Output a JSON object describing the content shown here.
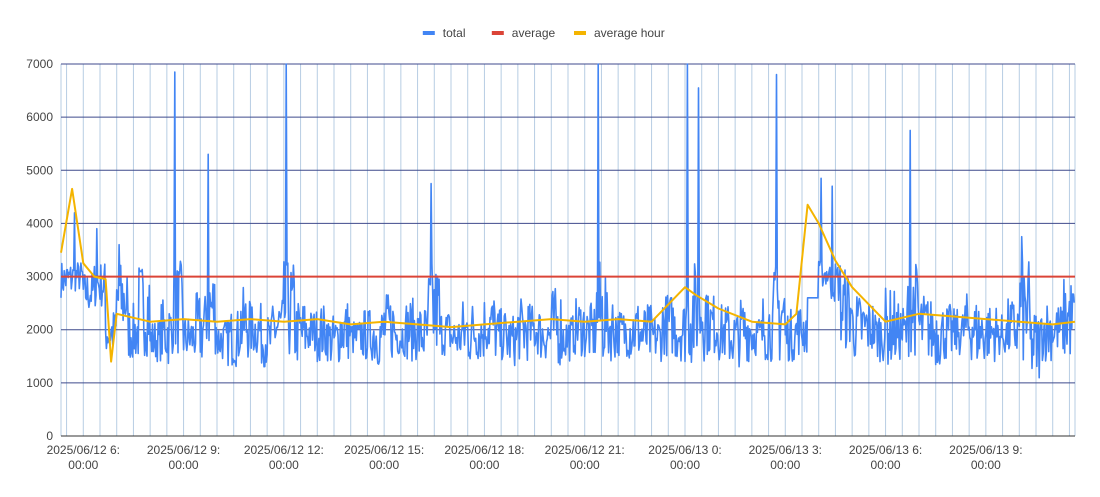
{
  "chart_data": {
    "type": "line",
    "legend_position": "top",
    "grid": true,
    "ylim": [
      0,
      7000
    ],
    "y_ticks": [
      0,
      1000,
      2000,
      3000,
      4000,
      5000,
      6000,
      7000
    ],
    "x_range": [
      "2025-06-12T05:20",
      "2025-06-13T11:40"
    ],
    "x_tick_labels": [
      {
        "line1": "2025/06/12 6:",
        "line2": "00:00",
        "t": "2025-06-12T06:00"
      },
      {
        "line1": "2025/06/12 9:",
        "line2": "00:00",
        "t": "2025-06-12T09:00"
      },
      {
        "line1": "2025/06/12 12:",
        "line2": "00:00",
        "t": "2025-06-12T12:00"
      },
      {
        "line1": "2025/06/12 15:",
        "line2": "00:00",
        "t": "2025-06-12T15:00"
      },
      {
        "line1": "2025/06/12 18:",
        "line2": "00:00",
        "t": "2025-06-12T18:00"
      },
      {
        "line1": "2025/06/12 21:",
        "line2": "00:00",
        "t": "2025-06-12T21:00"
      },
      {
        "line1": "2025/06/13 0:",
        "line2": "00:00",
        "t": "2025-06-13T00:00"
      },
      {
        "line1": "2025/06/13 3:",
        "line2": "00:00",
        "t": "2025-06-13T03:00"
      },
      {
        "line1": "2025/06/13 6:",
        "line2": "00:00",
        "t": "2025-06-13T06:00"
      },
      {
        "line1": "2025/06/13 9:",
        "line2": "00:00",
        "t": "2025-06-13T09:00"
      }
    ],
    "series": [
      {
        "name": "total",
        "color": "#4285f4",
        "x": [
          "2025-06-12T05:20",
          "2025-06-12T05:40",
          "2025-06-12T06:00",
          "2025-06-12T06:20",
          "2025-06-12T06:40",
          "2025-06-12T07:00",
          "2025-06-12T07:20",
          "2025-06-12T07:40",
          "2025-06-12T08:00",
          "2025-06-12T08:20",
          "2025-06-12T08:40",
          "2025-06-12T09:00",
          "2025-06-12T09:20",
          "2025-06-12T09:40",
          "2025-06-12T10:00",
          "2025-06-12T10:20",
          "2025-06-12T10:40",
          "2025-06-12T11:00",
          "2025-06-12T11:20",
          "2025-06-12T11:40",
          "2025-06-12T12:00",
          "2025-06-12T12:20",
          "2025-06-12T12:40",
          "2025-06-12T13:00",
          "2025-06-12T13:20",
          "2025-06-12T13:40",
          "2025-06-12T14:00",
          "2025-06-12T14:20",
          "2025-06-12T14:40",
          "2025-06-12T15:00",
          "2025-06-12T15:20",
          "2025-06-12T15:40",
          "2025-06-12T16:00",
          "2025-06-12T16:20",
          "2025-06-12T16:40",
          "2025-06-12T17:00",
          "2025-06-12T17:20",
          "2025-06-12T17:40",
          "2025-06-12T18:00",
          "2025-06-12T18:20",
          "2025-06-12T18:40",
          "2025-06-12T19:00",
          "2025-06-12T19:20",
          "2025-06-12T19:40",
          "2025-06-12T20:00",
          "2025-06-12T20:20",
          "2025-06-12T20:40",
          "2025-06-12T21:00",
          "2025-06-12T21:20",
          "2025-06-12T21:40",
          "2025-06-12T22:00",
          "2025-06-12T22:20",
          "2025-06-12T22:40",
          "2025-06-12T23:00",
          "2025-06-12T23:20",
          "2025-06-12T23:40",
          "2025-06-13T00:00",
          "2025-06-13T00:20",
          "2025-06-13T00:40",
          "2025-06-13T01:00",
          "2025-06-13T01:20",
          "2025-06-13T01:40",
          "2025-06-13T02:00",
          "2025-06-13T02:20",
          "2025-06-13T02:40",
          "2025-06-13T03:00",
          "2025-06-13T03:20",
          "2025-06-13T03:40",
          "2025-06-13T04:00",
          "2025-06-13T04:20",
          "2025-06-13T04:40",
          "2025-06-13T05:00",
          "2025-06-13T05:20",
          "2025-06-13T05:40",
          "2025-06-13T06:00",
          "2025-06-13T06:20",
          "2025-06-13T06:40",
          "2025-06-13T07:00",
          "2025-06-13T07:20",
          "2025-06-13T07:40",
          "2025-06-13T08:00",
          "2025-06-13T08:20",
          "2025-06-13T08:40",
          "2025-06-13T09:00",
          "2025-06-13T09:20",
          "2025-06-13T09:40",
          "2025-06-13T10:00",
          "2025-06-13T10:20",
          "2025-06-13T10:40",
          "2025-06-13T11:00",
          "2025-06-13T11:20",
          "2025-06-13T11:40"
        ],
        "values": [
          3500,
          4200,
          3100,
          3900,
          2400,
          3600,
          2500,
          3300,
          2200,
          2600,
          6850,
          2300,
          2700,
          5300,
          2200,
          2400,
          2800,
          2500,
          2300,
          2700,
          7000,
          2600,
          2400,
          2500,
          2300,
          2600,
          2200,
          2400,
          2500,
          2700,
          2300,
          2600,
          2500,
          4750,
          2400,
          2300,
          2600,
          2500,
          2700,
          2400,
          2300,
          2600,
          2500,
          2400,
          2800,
          2300,
          2600,
          2500,
          7000,
          2700,
          2400,
          2600,
          2500,
          2300,
          2700,
          2600,
          7000,
          6550,
          2700,
          2500,
          2400,
          2600,
          2300,
          2700,
          6800,
          2400,
          2500,
          2600,
          4850,
          4700,
          3200,
          2700,
          2600,
          2400,
          2800,
          2500,
          5750,
          2700,
          2600,
          2500,
          2400,
          2700,
          2600,
          2500,
          2300,
          2600,
          3750,
          2400,
          2600,
          2500,
          3000,
          3250
        ],
        "lows": [
          2600,
          2700,
          2300,
          2400,
          1500,
          1800,
          1400,
          1500,
          1400,
          1300,
          1500,
          1400,
          1300,
          1500,
          1400,
          1300,
          1400,
          1500,
          1300,
          1400,
          1400,
          1300,
          1500,
          1400,
          1300,
          1400,
          1500,
          1400,
          1300,
          1400,
          1500,
          1400,
          1300,
          1400,
          1500,
          1400,
          1300,
          1400,
          1500,
          1400,
          1300,
          1400,
          1500,
          1400,
          1300,
          1400,
          1500,
          1400,
          1300,
          1400,
          1500,
          1400,
          1300,
          1400,
          1500,
          1400,
          1300,
          1400,
          1500,
          1400,
          1300,
          1400,
          1500,
          1400,
          1300,
          1400,
          1500,
          2600,
          2800,
          2500,
          1600,
          1400,
          1500,
          1400,
          1300,
          1400,
          1500,
          1400,
          1300,
          1400,
          1500,
          1400,
          1300,
          1400,
          1500,
          1400,
          1300,
          1000,
          1400,
          1500,
          1400,
          1200
        ]
      },
      {
        "name": "average",
        "color": "#db4437",
        "values": [
          3000
        ]
      },
      {
        "name": "average hour",
        "color": "#f4b400",
        "x": [
          "2025-06-12T05:20",
          "2025-06-12T05:40",
          "2025-06-12T06:00",
          "2025-06-12T06:20",
          "2025-06-12T06:40",
          "2025-06-12T06:50",
          "2025-06-12T07:00",
          "2025-06-12T08:00",
          "2025-06-12T09:00",
          "2025-06-12T10:00",
          "2025-06-12T11:00",
          "2025-06-12T12:00",
          "2025-06-12T13:00",
          "2025-06-12T14:00",
          "2025-06-12T15:00",
          "2025-06-12T16:00",
          "2025-06-12T17:00",
          "2025-06-12T18:00",
          "2025-06-12T19:00",
          "2025-06-12T20:00",
          "2025-06-12T21:00",
          "2025-06-12T22:00",
          "2025-06-12T23:00",
          "2025-06-13T00:00",
          "2025-06-13T00:20",
          "2025-06-13T01:00",
          "2025-06-13T02:00",
          "2025-06-13T03:00",
          "2025-06-13T03:20",
          "2025-06-13T03:40",
          "2025-06-13T04:00",
          "2025-06-13T04:30",
          "2025-06-13T05:00",
          "2025-06-13T06:00",
          "2025-06-13T07:00",
          "2025-06-13T08:00",
          "2025-06-13T09:00",
          "2025-06-13T10:00",
          "2025-06-13T11:00",
          "2025-06-13T11:40"
        ],
        "values": [
          3450,
          4650,
          3250,
          3000,
          2950,
          1400,
          2300,
          2150,
          2200,
          2150,
          2200,
          2150,
          2200,
          2100,
          2150,
          2100,
          2050,
          2100,
          2150,
          2200,
          2150,
          2200,
          2150,
          2800,
          2650,
          2400,
          2150,
          2100,
          2300,
          4350,
          4000,
          3300,
          2800,
          2150,
          2300,
          2250,
          2200,
          2150,
          2100,
          2150
        ]
      }
    ]
  }
}
